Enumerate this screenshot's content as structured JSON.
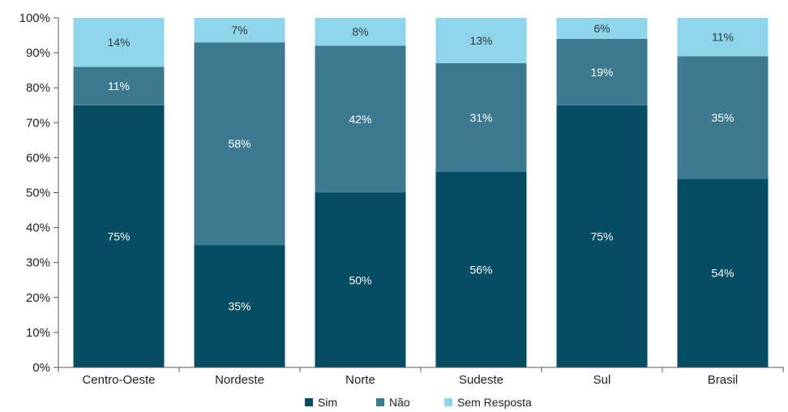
{
  "chart_data": {
    "type": "bar",
    "stacked": true,
    "categories": [
      "Centro-Oeste",
      "Nordeste",
      "Norte",
      "Sudeste",
      "Sul",
      "Brasil"
    ],
    "series": [
      {
        "name": "Sim",
        "color": "#054d63",
        "values": [
          75,
          35,
          50,
          56,
          75,
          54
        ],
        "labels": [
          "75%",
          "35%",
          "50%",
          "56%",
          "75%",
          "54%"
        ]
      },
      {
        "name": "Não",
        "color": "#3d7a90",
        "values": [
          11,
          58,
          42,
          31,
          19,
          35
        ],
        "labels": [
          "11%",
          "58%",
          "42%",
          "31%",
          "19%",
          "35%"
        ]
      },
      {
        "name": "Sem Resposta",
        "color": "#8fd5ea",
        "values": [
          14,
          7,
          8,
          13,
          6,
          11
        ],
        "labels": [
          "14%",
          "7%",
          "8%",
          "13%",
          "6%",
          "11%"
        ]
      }
    ],
    "ylim": [
      0,
      100
    ],
    "yticks": [
      "0%",
      "10%",
      "20%",
      "30%",
      "40%",
      "50%",
      "60%",
      "70%",
      "80%",
      "90%",
      "100%"
    ],
    "grid": false,
    "legend_position": "bottom",
    "colors": {
      "axis": "#555555",
      "text": "#222222",
      "label_light": "#ffffff",
      "label_dark": "#2b3a40"
    }
  }
}
